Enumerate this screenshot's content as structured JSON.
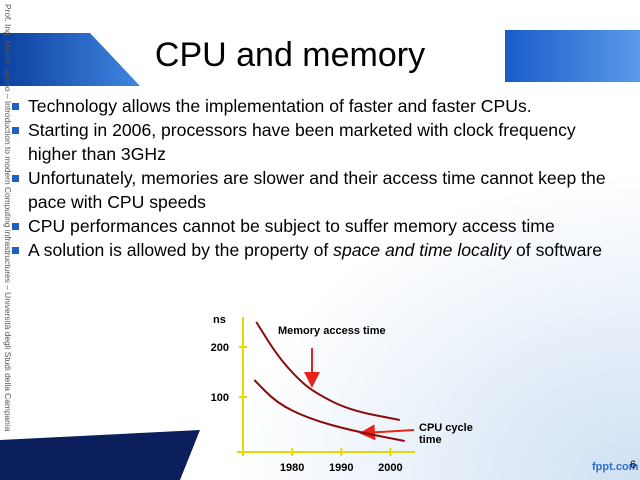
{
  "side_text": "Prof. Ing. Mauro Iacono – Introduction to modern Computing infrastructures – Università degli Studi della Campania",
  "title": "CPU and memory",
  "bullets": [
    [
      "Technology allows the implementation of faster and faster CPUs."
    ],
    [
      "Starting in 2006, processors have been marketed with clock frequency higher than 3GHz"
    ],
    [
      "Unfortunately, memories are slower and their access time cannot keep the pace with CPU speeds"
    ],
    [
      "CPU performances cannot be subject to suffer memory access time"
    ],
    [
      "A solution is allowed by the property of ",
      {
        "text": "space and time locality",
        "italic": true
      },
      " of software"
    ]
  ],
  "footer": {
    "brand": "fppt.com",
    "page": "6"
  },
  "chart_data": {
    "type": "line",
    "y_label": "ns",
    "xlim": [
      1970,
      2005
    ],
    "ylim": [
      0,
      260
    ],
    "xticks": [
      1980,
      1990,
      2000
    ],
    "yticks": [
      100,
      200
    ],
    "series": [
      {
        "name": "Memory access time",
        "color": "#8b0a0a",
        "x": [
          1972.7,
          1976.9,
          1981,
          1984.4,
          1991.5,
          2001.9
        ],
        "values": [
          250,
          184,
          138,
          110,
          74,
          54
        ]
      },
      {
        "name": "CPU cycle time",
        "color": "#8b0a0a",
        "x": [
          1972.3,
          1976.9,
          1983.1,
          1991.5,
          2002.9
        ],
        "values": [
          134,
          88,
          58,
          34,
          12
        ]
      }
    ]
  }
}
